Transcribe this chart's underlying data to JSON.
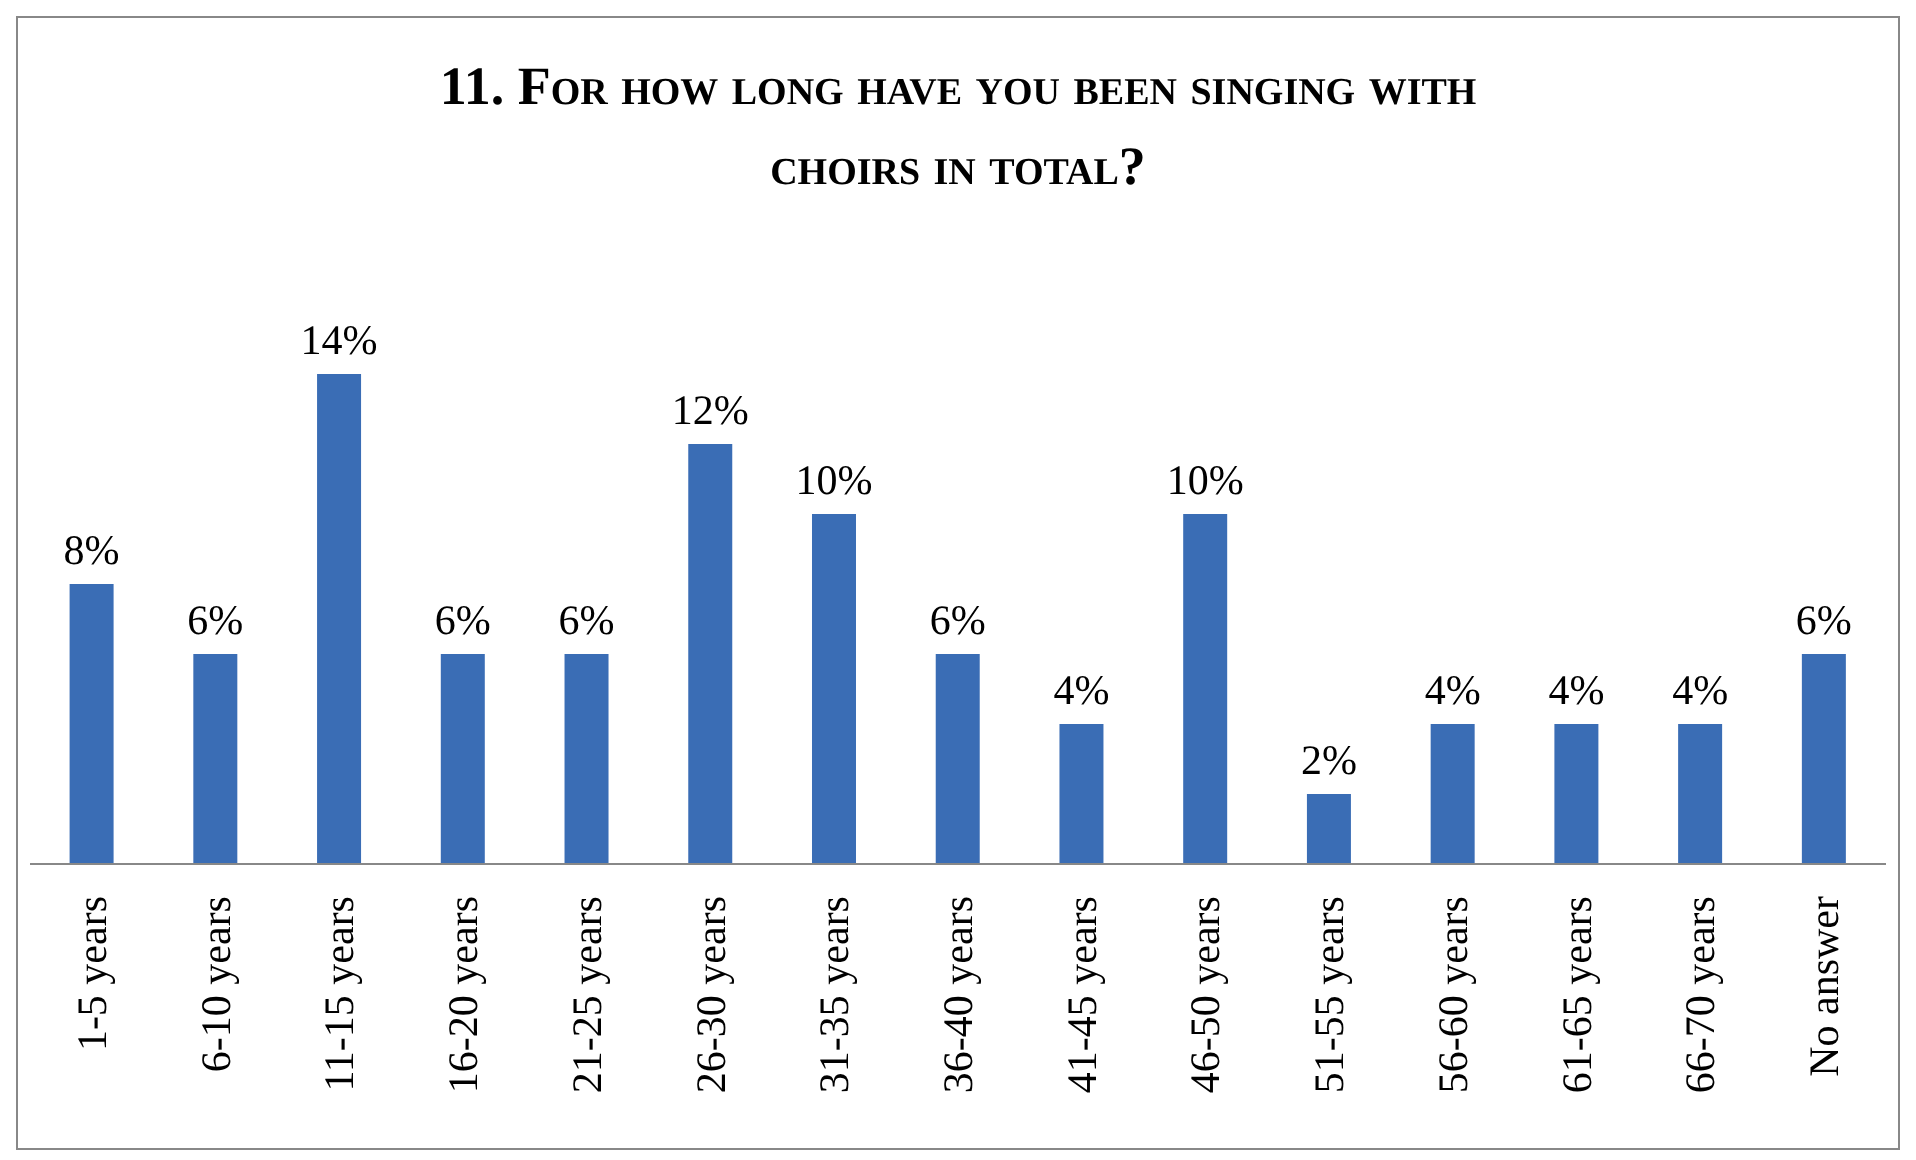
{
  "chart_data": {
    "type": "bar",
    "title": "11. For how long have you been singing with choirs in total?",
    "categories": [
      "1-5 years",
      "6-10 years",
      "11-15 years",
      "16-20 years",
      "21-25 years",
      "26-30 years",
      "31-35 years",
      "36-40 years",
      "41-45 years",
      "46-50 years",
      "51-55 years",
      "56-60 years",
      "61-65 years",
      "66-70 years",
      "No answer"
    ],
    "values": [
      8,
      6,
      14,
      6,
      6,
      12,
      10,
      6,
      4,
      10,
      2,
      4,
      4,
      4,
      6
    ],
    "value_labels": [
      "8%",
      "6%",
      "14%",
      "6%",
      "6%",
      "12%",
      "10%",
      "6%",
      "4%",
      "10%",
      "2%",
      "4%",
      "4%",
      "4%",
      "6%"
    ],
    "color": "#3a6db5"
  }
}
